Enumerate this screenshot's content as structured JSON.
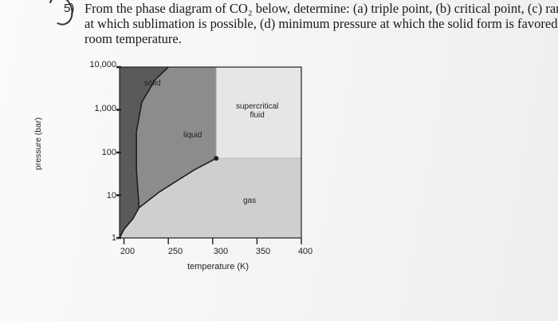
{
  "question": {
    "number": "5)",
    "line1": "From the phase diagram of CO₂ below, determine: (a) triple point, (b) critical point, (c) range",
    "line2": "at which sublimation is possible, (d) minimum pressure at which the solid form is favored at",
    "line3": "room temperature."
  },
  "chart_data": {
    "type": "line",
    "title": "",
    "xlabel": "temperature (K)",
    "ylabel": "pressure (bar)",
    "x_ticks": [
      "200",
      "250",
      "300",
      "350",
      "400"
    ],
    "y_ticks": [
      "10,000",
      "1,000",
      "100",
      "10",
      "1"
    ],
    "xlim": [
      195,
      400
    ],
    "ylim": [
      1,
      10000
    ],
    "y_scale": "log",
    "regions": {
      "solid": "solid",
      "liquid": "liquid",
      "gas": "gas",
      "supercritical": [
        "supercritical",
        "fluid"
      ]
    },
    "series": [
      {
        "name": "",
        "x": [
          195,
          200,
          210,
          217
        ],
        "y": [
          1.0,
          1.6,
          2.8,
          5.1
        ]
      },
      {
        "name": "",
        "x": [
          217,
          240,
          260,
          280,
          304
        ],
        "y": [
          5.1,
          12,
          22,
          40,
          73
        ]
      },
      {
        "name": "",
        "x": [
          217,
          214,
          214,
          220,
          235,
          250
        ],
        "y": [
          5.1,
          40,
          300,
          1500,
          5000,
          10000
        ]
      }
    ],
    "critical_point": {
      "x": 304,
      "y": 73
    },
    "colors": {
      "solid": "#5a5a5a",
      "liquid": "#8c8c8c",
      "gas": "#cfcfcf",
      "supercritical": "#e6e6e6",
      "marker": "#222222"
    }
  }
}
